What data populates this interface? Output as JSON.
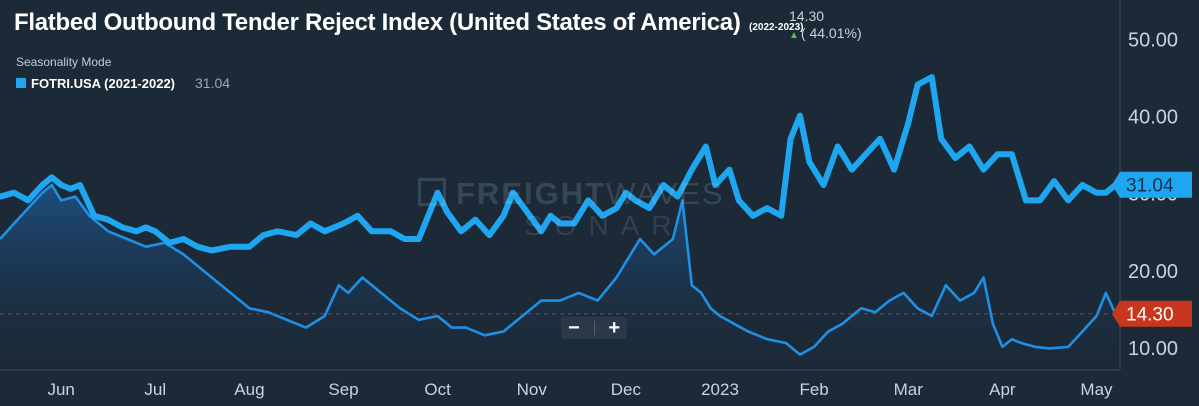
{
  "header": {
    "title": "Flatbed Outbound Tender Reject Index (United States of America)",
    "years": "(2022-2023)",
    "current_value": "14.30",
    "change_arrow": "▲",
    "change": "( 44.01%)",
    "mode": "Seasonality Mode",
    "legend_name": "FOTRI.USA (2021-2022)",
    "legend_value": "31.04"
  },
  "watermark": {
    "brand_bold": "FREIGHT",
    "brand_thin": "WAVES",
    "sub": "SONAR"
  },
  "zoom": {
    "minus": "−",
    "plus": "+"
  },
  "colors": {
    "background": "#1c2a38",
    "series_2021": "#1ea7f0",
    "series_2022": "#1e90e6",
    "current_badge": "#c8361e",
    "grid": "#2b3a49"
  },
  "chart_data": {
    "type": "line",
    "title": "Flatbed Outbound Tender Reject Index (United States of America)",
    "xlabel": "",
    "ylabel": "",
    "ylim": [
      7,
      55
    ],
    "y_ticks": [
      "10.00",
      "20.00",
      "30.00",
      "40.00",
      "50.00"
    ],
    "y_tick_values": [
      10,
      20,
      30,
      40,
      50
    ],
    "x_ticks": [
      "Jun",
      "Jul",
      "Aug",
      "Sep",
      "Oct",
      "Nov",
      "Dec",
      "2023",
      "Feb",
      "Mar",
      "Apr",
      "May"
    ],
    "x_tick_values": [
      1.0,
      2.0,
      3.0,
      4.0,
      5.0,
      6.0,
      7.0,
      8.0,
      9.0,
      10.0,
      11.0,
      12.0
    ],
    "xlim": [
      0.35,
      12.25
    ],
    "last_labels": [
      {
        "text": "31.04",
        "value": 31.04,
        "series": 0
      },
      {
        "text": "14.30",
        "value": 14.3,
        "series": 1
      }
    ],
    "series": [
      {
        "name": "FOTRI.USA (2021-2022)",
        "x": [
          0.35,
          0.5,
          0.65,
          0.8,
          0.9,
          1.0,
          1.1,
          1.2,
          1.35,
          1.5,
          1.65,
          1.8,
          1.9,
          2.0,
          2.15,
          2.3,
          2.45,
          2.6,
          2.8,
          3.0,
          3.15,
          3.3,
          3.5,
          3.65,
          3.8,
          4.0,
          4.15,
          4.3,
          4.5,
          4.65,
          4.8,
          5.0,
          5.1,
          5.25,
          5.4,
          5.55,
          5.7,
          5.8,
          5.95,
          6.1,
          6.2,
          6.3,
          6.45,
          6.6,
          6.75,
          6.9,
          7.0,
          7.1,
          7.25,
          7.4,
          7.55,
          7.7,
          7.85,
          7.95,
          8.1,
          8.2,
          8.35,
          8.5,
          8.65,
          8.75,
          8.85,
          8.95,
          9.1,
          9.25,
          9.4,
          9.55,
          9.7,
          9.85,
          10.0,
          10.1,
          10.25,
          10.35,
          10.5,
          10.65,
          10.8,
          10.95,
          11.1,
          11.25,
          11.4,
          11.55,
          11.7,
          11.85,
          12.0,
          12.1,
          12.2
        ],
        "y": [
          29.5,
          30,
          29,
          31,
          32,
          31,
          30.5,
          31,
          27,
          26.5,
          25.5,
          25,
          25.5,
          25,
          23.5,
          24,
          23,
          22.5,
          23,
          23,
          24.5,
          25,
          24.5,
          26,
          25,
          26,
          27,
          25,
          25,
          24,
          24,
          30,
          27.5,
          25,
          26.5,
          24.5,
          27,
          30,
          27.5,
          25,
          27,
          26,
          26,
          29,
          27,
          28,
          30,
          29,
          28,
          31,
          29.5,
          33,
          36,
          31,
          33,
          29,
          27,
          28,
          27,
          37,
          40,
          34,
          31,
          36,
          33,
          35,
          37,
          33,
          39,
          44,
          45,
          37,
          34.5,
          36,
          33,
          35,
          35,
          29,
          29,
          31.5,
          29,
          31,
          30,
          30,
          31
        ]
      },
      {
        "name": "",
        "x": [
          0.35,
          0.5,
          0.65,
          0.8,
          0.9,
          1.0,
          1.15,
          1.3,
          1.5,
          1.7,
          1.9,
          2.1,
          2.3,
          2.45,
          2.6,
          2.8,
          3.0,
          3.2,
          3.4,
          3.6,
          3.8,
          3.95,
          4.05,
          4.2,
          4.4,
          4.6,
          4.8,
          5.0,
          5.15,
          5.3,
          5.5,
          5.7,
          5.9,
          6.1,
          6.3,
          6.5,
          6.7,
          6.9,
          7.0,
          7.15,
          7.3,
          7.5,
          7.6,
          7.7,
          7.8,
          7.9,
          8.0,
          8.15,
          8.3,
          8.5,
          8.7,
          8.85,
          9.0,
          9.15,
          9.3,
          9.5,
          9.65,
          9.8,
          9.95,
          10.1,
          10.25,
          10.4,
          10.55,
          10.7,
          10.8,
          10.9,
          11.0,
          11.1,
          11.2,
          11.35,
          11.5,
          11.7,
          11.85,
          12.0,
          12.1,
          12.2
        ],
        "y": [
          24,
          26,
          28,
          30,
          31,
          29,
          29.5,
          27,
          25,
          24,
          23,
          23.5,
          22,
          20.5,
          19,
          17,
          15,
          14.5,
          13.5,
          12.5,
          14,
          18,
          17,
          19,
          17,
          15,
          13.5,
          14,
          12.5,
          12.5,
          11.5,
          12,
          14,
          16,
          16,
          17,
          16,
          19,
          21,
          24,
          22,
          24,
          29,
          18,
          17,
          15,
          14,
          13,
          12,
          11,
          10.5,
          9,
          10,
          12,
          13,
          15,
          14.5,
          16,
          17,
          15,
          14,
          18,
          16,
          17,
          19,
          13,
          10,
          11,
          10.5,
          10,
          9.8,
          10,
          12,
          14,
          17,
          14.3
        ]
      }
    ]
  }
}
